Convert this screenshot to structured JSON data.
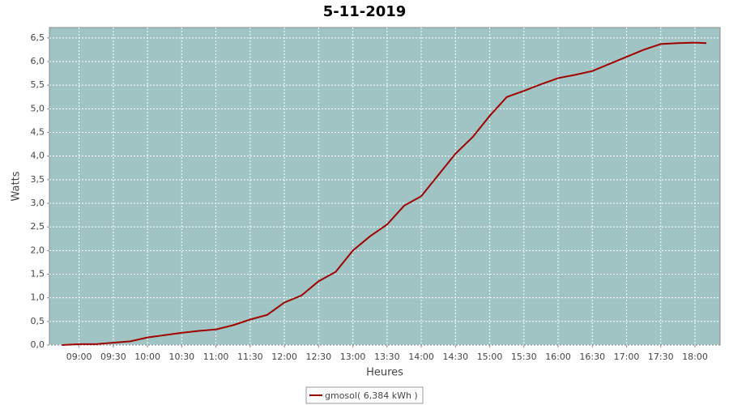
{
  "chart_data": {
    "type": "line",
    "title": "5-11-2019",
    "x_label": "Heures",
    "y_label": "Watts",
    "x": [
      "08:45",
      "09:00",
      "09:15",
      "09:30",
      "09:45",
      "10:00",
      "10:15",
      "10:30",
      "10:45",
      "11:00",
      "11:15",
      "11:30",
      "11:45",
      "12:00",
      "12:15",
      "12:30",
      "12:45",
      "13:00",
      "13:15",
      "13:30",
      "13:45",
      "14:00",
      "14:15",
      "14:30",
      "14:45",
      "15:00",
      "15:15",
      "15:30",
      "15:45",
      "16:00",
      "16:15",
      "16:30",
      "16:45",
      "17:00",
      "17:15",
      "17:30",
      "17:45",
      "18:00",
      "18:10"
    ],
    "series": [
      {
        "name": "gmosol( 6,384 kWh )",
        "color": "#a00000",
        "values": [
          0.0,
          0.02,
          0.02,
          0.05,
          0.08,
          0.16,
          0.21,
          0.26,
          0.3,
          0.33,
          0.42,
          0.54,
          0.64,
          0.9,
          1.05,
          1.35,
          1.55,
          2.0,
          2.3,
          2.55,
          2.95,
          3.15,
          3.6,
          4.05,
          4.4,
          4.85,
          5.25,
          5.38,
          5.52,
          5.65,
          5.72,
          5.8,
          5.95,
          6.1,
          6.25,
          6.37,
          6.39,
          6.4,
          6.39
        ]
      }
    ],
    "xlim": [
      "08:34",
      "18:22"
    ],
    "xticks": [
      "09:00",
      "09:30",
      "10:00",
      "10:30",
      "11:00",
      "11:30",
      "12:00",
      "12:30",
      "13:00",
      "13:30",
      "14:00",
      "14:30",
      "15:00",
      "15:30",
      "16:00",
      "16:30",
      "17:00",
      "17:30",
      "18:00"
    ],
    "ylim": [
      0,
      6.72
    ],
    "yticks": [
      {
        "value": 0,
        "label": "0,0"
      },
      {
        "value": 0.5,
        "label": "0,5"
      },
      {
        "value": 1,
        "label": "1,0"
      },
      {
        "value": 1.5,
        "label": "1,5"
      },
      {
        "value": 2,
        "label": "2,0"
      },
      {
        "value": 2.5,
        "label": "2,5"
      },
      {
        "value": 3,
        "label": "3,0"
      },
      {
        "value": 3.5,
        "label": "3,5"
      },
      {
        "value": 4,
        "label": "4,0"
      },
      {
        "value": 4.5,
        "label": "4,5"
      },
      {
        "value": 5,
        "label": "5,0"
      },
      {
        "value": 5.5,
        "label": "5,5"
      },
      {
        "value": 6,
        "label": "6,0"
      },
      {
        "value": 6.5,
        "label": "6,5"
      }
    ],
    "grid": true,
    "background": "#a0c4c4"
  }
}
